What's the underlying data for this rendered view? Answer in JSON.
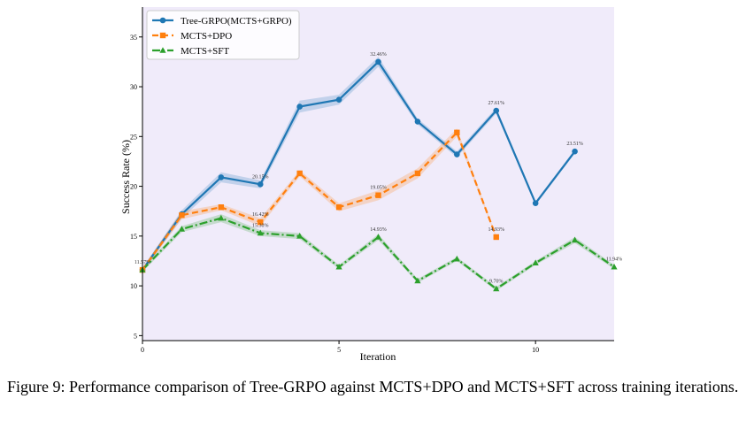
{
  "chart_data": {
    "type": "line",
    "title": "",
    "xlabel": "Iteration",
    "ylabel": "Success Rate (%)",
    "xlim": [
      0,
      12
    ],
    "ylim": [
      4.5,
      38
    ],
    "xticks": [
      0,
      5,
      10
    ],
    "yticks": [
      5,
      10,
      15,
      20,
      25,
      30,
      35
    ],
    "grid": false,
    "background_color": "#f0ebfa",
    "legend_position": "top-left",
    "series": [
      {
        "name": "Tree-GRPO(MCTS+GRPO)",
        "color": "#1f77b4",
        "line_style": "solid",
        "marker": "circle",
        "x": [
          0,
          1,
          2,
          3,
          4,
          5,
          6,
          7,
          8,
          9,
          10,
          11
        ],
        "y": [
          11.6,
          17.2,
          20.9,
          20.2,
          28.0,
          28.7,
          32.5,
          26.5,
          23.2,
          27.6,
          18.3,
          23.5
        ],
        "band": [
          0.2,
          0.4,
          0.5,
          0.4,
          0.6,
          0.5,
          0.5,
          0.3,
          0.3,
          0.3,
          0.2,
          0.2
        ],
        "labels": [
          {
            "x": 3,
            "y": 20.2,
            "text": "20.15%"
          },
          {
            "x": 6,
            "y": 32.5,
            "text": "32.46%"
          },
          {
            "x": 9,
            "y": 27.6,
            "text": "27.61%"
          },
          {
            "x": 11,
            "y": 23.5,
            "text": "23.51%"
          }
        ]
      },
      {
        "name": "MCTS+DPO",
        "color": "#ff7f0e",
        "line_style": "dashed",
        "marker": "square",
        "x": [
          0,
          1,
          2,
          3,
          4,
          5,
          6,
          7,
          8,
          9
        ],
        "y": [
          11.6,
          17.1,
          17.9,
          16.4,
          21.3,
          17.9,
          19.1,
          21.3,
          25.4,
          14.9
        ],
        "band": [
          0.2,
          0.4,
          0.3,
          0.4,
          0.3,
          0.4,
          0.5,
          0.5,
          0.4,
          0.1
        ],
        "labels": [
          {
            "x": 3,
            "y": 16.4,
            "text": "16.42%"
          },
          {
            "x": 6,
            "y": 19.1,
            "text": "19.05%"
          },
          {
            "x": 9,
            "y": 14.9,
            "text": "14.93%"
          }
        ]
      },
      {
        "name": "MCTS+SFT",
        "color": "#2ca02c",
        "line_style": "dashdot",
        "marker": "triangle",
        "x": [
          0,
          1,
          2,
          3,
          4,
          5,
          6,
          7,
          8,
          9,
          10,
          11,
          12
        ],
        "y": [
          11.6,
          15.7,
          16.8,
          15.3,
          15.0,
          11.9,
          14.9,
          10.5,
          12.7,
          9.7,
          12.3,
          14.6,
          11.9
        ],
        "band": [
          0.2,
          0.3,
          0.4,
          0.3,
          0.3,
          0.2,
          0.3,
          0.2,
          0.2,
          0.2,
          0.2,
          0.3,
          0.2
        ],
        "labels": [
          {
            "x": 0,
            "y": 11.6,
            "text": "11.57%"
          },
          {
            "x": 3,
            "y": 15.3,
            "text": "15.30%"
          },
          {
            "x": 6,
            "y": 14.9,
            "text": "14.93%"
          },
          {
            "x": 9,
            "y": 9.7,
            "text": "9.70%"
          },
          {
            "x": 12,
            "y": 11.9,
            "text": "11.94%"
          }
        ]
      }
    ]
  },
  "caption": "Figure 9: Performance comparison of Tree-GRPO against MCTS+DPO and MCTS+SFT across training iterations."
}
